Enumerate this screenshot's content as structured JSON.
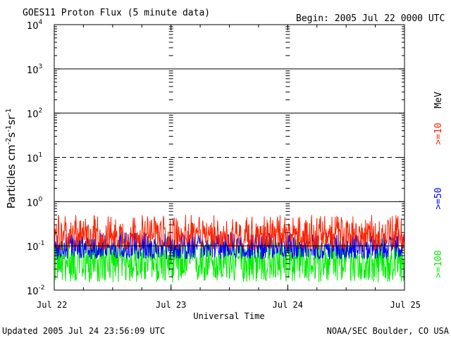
{
  "chart_data": {
    "type": "line",
    "title": "GOES11 Proton Flux (5 minute data)",
    "begin_label": "Begin: 2005 Jul 22 0000 UTC",
    "xlabel": "Universal Time",
    "ylabel_main": "Particles cm",
    "ylabel_sup1": "-2",
    "ylabel_mid1": "s",
    "ylabel_sup2": "-1",
    "ylabel_mid2": "sr",
    "ylabel_sup3": "-1",
    "yscale": "log",
    "ylim": [
      0.01,
      10000
    ],
    "xlim_days": [
      0,
      3
    ],
    "y_ticks": [
      {
        "base": "10",
        "exp": "-2",
        "value": 0.01
      },
      {
        "base": "10",
        "exp": "-1",
        "value": 0.1
      },
      {
        "base": "10",
        "exp": "0",
        "value": 1
      },
      {
        "base": "10",
        "exp": "1",
        "value": 10
      },
      {
        "base": "10",
        "exp": "2",
        "value": 100
      },
      {
        "base": "10",
        "exp": "3",
        "value": 1000
      },
      {
        "base": "10",
        "exp": "4",
        "value": 10000
      }
    ],
    "x_ticks": [
      {
        "label": "Jul 22",
        "day": 0
      },
      {
        "label": "Jul 23",
        "day": 1
      },
      {
        "label": "Jul 24",
        "day": 2
      },
      {
        "label": "Jul 25",
        "day": 3
      }
    ],
    "threshold_lines": [
      {
        "value": 1000,
        "style": "solid"
      },
      {
        "value": 100,
        "style": "solid"
      },
      {
        "value": 10,
        "style": "dashed"
      },
      {
        "value": 1,
        "style": "solid"
      },
      {
        "value": 0.1,
        "style": "solid"
      }
    ],
    "series": [
      {
        "name": ">=10",
        "color": "#ff2200",
        "median": 0.18,
        "range": [
          0.08,
          0.5
        ]
      },
      {
        "name": ">=50",
        "color": "#0000ff",
        "median": 0.1,
        "range": [
          0.05,
          0.2
        ]
      },
      {
        "name": ">=100",
        "color": "#00ee00",
        "median": 0.05,
        "range": [
          0.015,
          0.15
        ]
      }
    ],
    "legend_unit": "MeV",
    "footer_left": "Updated 2005 Jul 24 23:56:09 UTC",
    "footer_right": "NOAA/SEC Boulder, CO USA"
  }
}
